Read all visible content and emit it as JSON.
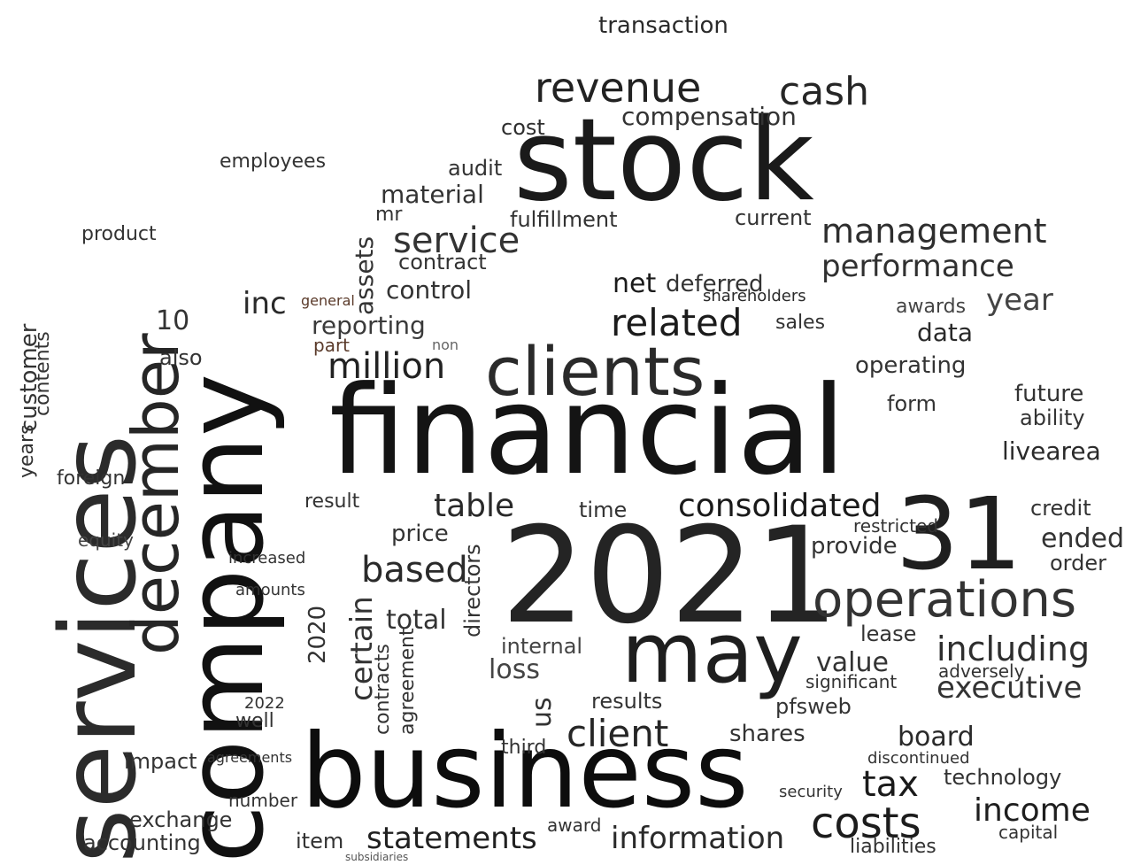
{
  "words": [
    {
      "text": "stock",
      "c": "#1a1a1a"
    },
    {
      "text": "company",
      "c": "#111111"
    },
    {
      "text": "services",
      "c": "#2b2b2b"
    },
    {
      "text": "financial",
      "c": "#141414"
    },
    {
      "text": "2021",
      "c": "#242424"
    },
    {
      "text": "business",
      "c": "#0d0d0d"
    },
    {
      "text": "december",
      "c": "#262626"
    },
    {
      "text": "may",
      "c": "#1e1e1e"
    },
    {
      "text": "clients",
      "c": "#2a2a2a"
    },
    {
      "text": "31",
      "c": "#1f1f1f"
    },
    {
      "text": "operations",
      "c": "#333333"
    },
    {
      "text": "revenue",
      "c": "#222222"
    },
    {
      "text": "cash",
      "c": "#262626"
    },
    {
      "text": "costs",
      "c": "#1c1c1c"
    },
    {
      "text": "table",
      "c": "#292929"
    },
    {
      "text": "consolidated",
      "c": "#1a1a1a"
    },
    {
      "text": "management",
      "c": "#2e2e2e"
    },
    {
      "text": "performance",
      "c": "#303030"
    },
    {
      "text": "related",
      "c": "#1b1b1b"
    },
    {
      "text": "million",
      "c": "#222222"
    },
    {
      "text": "service",
      "c": "#333333"
    },
    {
      "text": "client",
      "c": "#262626"
    },
    {
      "text": "statements",
      "c": "#202020"
    },
    {
      "text": "information",
      "c": "#2a2a2a"
    },
    {
      "text": "income",
      "c": "#1e1e1e"
    },
    {
      "text": "tax",
      "c": "#1a1a1a"
    },
    {
      "text": "including",
      "c": "#2e2e2e"
    },
    {
      "text": "executive",
      "c": "#333333"
    },
    {
      "text": "based",
      "c": "#2a2a2a"
    },
    {
      "text": "certain",
      "c": "#333333"
    },
    {
      "text": "transaction",
      "c": "#2a2a2a"
    },
    {
      "text": "compensation",
      "c": "#333333"
    },
    {
      "text": "net",
      "c": "#1b1b1b"
    },
    {
      "text": "deferred",
      "c": "#333333"
    },
    {
      "text": "shareholders",
      "c": "#2a2a2a"
    },
    {
      "text": "reporting",
      "c": "#3a3a3a"
    },
    {
      "text": "inc",
      "c": "#2a2a2a"
    },
    {
      "text": "assets",
      "c": "#333333"
    },
    {
      "text": "material",
      "c": "#333333"
    },
    {
      "text": "control",
      "c": "#333333"
    },
    {
      "text": "contract",
      "c": "#333333"
    },
    {
      "text": "fulfillment",
      "c": "#333333"
    },
    {
      "text": "audit",
      "c": "#333333"
    },
    {
      "text": "cost",
      "c": "#2e2e2e"
    },
    {
      "text": "current",
      "c": "#333333"
    },
    {
      "text": "operating",
      "c": "#333333"
    },
    {
      "text": "year",
      "c": "#444444"
    },
    {
      "text": "data",
      "c": "#2a2a2a"
    },
    {
      "text": "future",
      "c": "#333333"
    },
    {
      "text": "ability",
      "c": "#333333"
    },
    {
      "text": "livearea",
      "c": "#2a2a2a"
    },
    {
      "text": "ended",
      "c": "#333333"
    },
    {
      "text": "order",
      "c": "#333333"
    },
    {
      "text": "credit",
      "c": "#333333"
    },
    {
      "text": "lease",
      "c": "#333333"
    },
    {
      "text": "value",
      "c": "#333333"
    },
    {
      "text": "board",
      "c": "#2a2a2a"
    },
    {
      "text": "technology",
      "c": "#333333"
    },
    {
      "text": "liabilities",
      "c": "#333333"
    },
    {
      "text": "capital",
      "c": "#333333"
    },
    {
      "text": "provide",
      "c": "#333333"
    },
    {
      "text": "restricted",
      "c": "#333333"
    },
    {
      "text": "time",
      "c": "#333333"
    },
    {
      "text": "price",
      "c": "#333333"
    },
    {
      "text": "result",
      "c": "#333333"
    },
    {
      "text": "total",
      "c": "#333333"
    },
    {
      "text": "directors",
      "c": "#333333"
    },
    {
      "text": "internal",
      "c": "#444444"
    },
    {
      "text": "loss",
      "c": "#444444"
    },
    {
      "text": "us",
      "c": "#333333"
    },
    {
      "text": "results",
      "c": "#333333"
    },
    {
      "text": "shares",
      "c": "#333333"
    },
    {
      "text": "pfsweb",
      "c": "#333333"
    },
    {
      "text": "form",
      "c": "#333333"
    },
    {
      "text": "awards",
      "c": "#444444"
    },
    {
      "text": "sales",
      "c": "#333333"
    },
    {
      "text": "item",
      "c": "#333333"
    },
    {
      "text": "accounting",
      "c": "#333333"
    },
    {
      "text": "exchange",
      "c": "#333333"
    },
    {
      "text": "impact",
      "c": "#333333"
    },
    {
      "text": "customer",
      "c": "#333333"
    },
    {
      "text": "years",
      "c": "#333333"
    },
    {
      "text": "contents",
      "c": "#333333"
    },
    {
      "text": "product",
      "c": "#333333"
    },
    {
      "text": "employees",
      "c": "#333333"
    },
    {
      "text": "2020",
      "c": "#333333"
    },
    {
      "text": "contracts",
      "c": "#333333"
    },
    {
      "text": "agreement",
      "c": "#333333"
    },
    {
      "text": "foreign",
      "c": "#333333"
    },
    {
      "text": "equity",
      "c": "#444444"
    },
    {
      "text": "10",
      "c": "#333333"
    },
    {
      "text": "also",
      "c": "#333333"
    },
    {
      "text": "mr",
      "c": "#333333"
    },
    {
      "text": "2022",
      "c": "#333333"
    },
    {
      "text": "well",
      "c": "#333333"
    },
    {
      "text": "number",
      "c": "#333333"
    },
    {
      "text": "award",
      "c": "#333333"
    },
    {
      "text": "third",
      "c": "#333333"
    },
    {
      "text": "subsidiaries",
      "c": "#555555"
    },
    {
      "text": "discontinued",
      "c": "#333333"
    },
    {
      "text": "security",
      "c": "#333333"
    },
    {
      "text": "significant",
      "c": "#333333"
    },
    {
      "text": "adversely",
      "c": "#333333"
    },
    {
      "text": "increased",
      "c": "#333333"
    },
    {
      "text": "amounts",
      "c": "#333333"
    },
    {
      "text": "agreements",
      "c": "#333333"
    },
    {
      "text": "general",
      "c": "#5a3a2a"
    },
    {
      "text": "part",
      "c": "#5a3a2a"
    },
    {
      "text": "non",
      "c": "#666666"
    }
  ]
}
